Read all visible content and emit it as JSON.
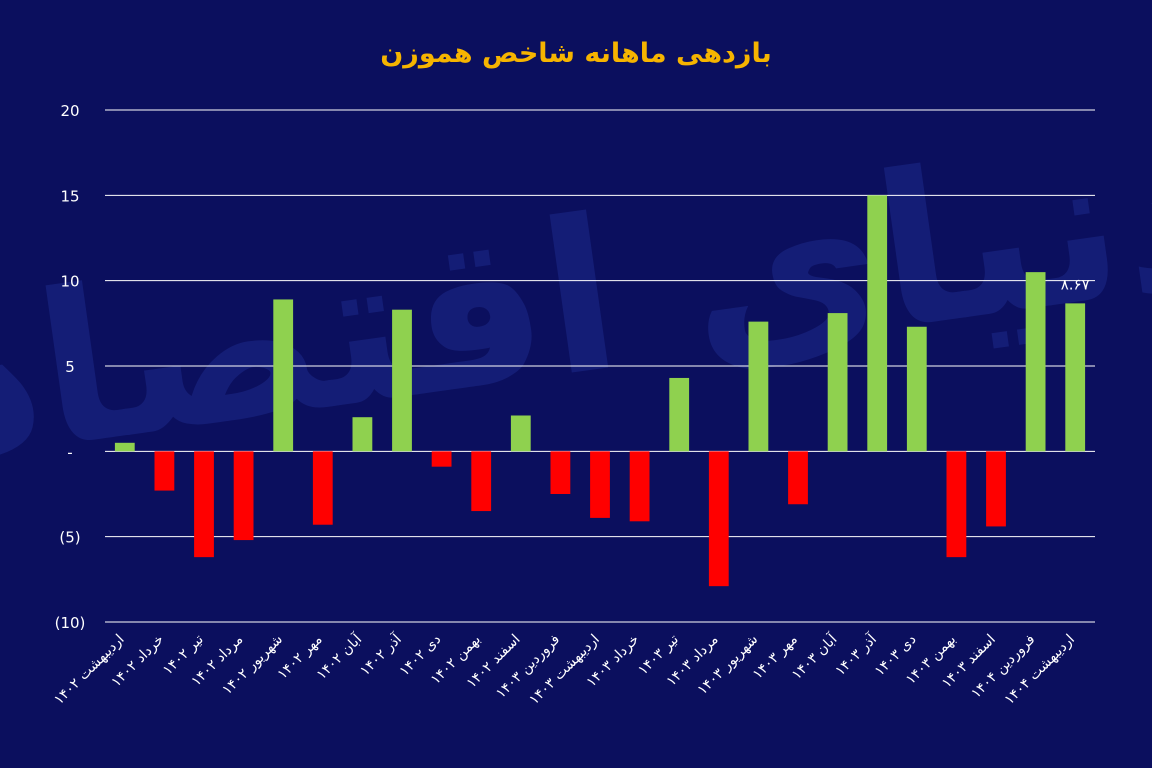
{
  "colors": {
    "background": "#0b0f5e",
    "title": "#f6b400",
    "positive": "#8fd14f",
    "negative": "#ff0000",
    "grid": "#ffffff",
    "text": "#ffffff",
    "watermark": "#1c2a8a"
  },
  "watermark_text": "دنیای اقتصاد",
  "chart_data": {
    "type": "bar",
    "title": "بازدهی ماهانه شاخص هموزن",
    "xlabel": "",
    "ylabel": "",
    "ylim": [
      -10,
      20
    ],
    "grid": true,
    "legend": "none",
    "y_ticks": [
      {
        "value": 20,
        "label": "20"
      },
      {
        "value": 15,
        "label": "15"
      },
      {
        "value": 10,
        "label": "10"
      },
      {
        "value": 5,
        "label": "5"
      },
      {
        "value": 0,
        "label": "-"
      },
      {
        "value": -5,
        "label": "(5)"
      },
      {
        "value": -10,
        "label": "(10)"
      }
    ],
    "categories": [
      "اردیبهشت ۱۴۰۲",
      "خرداد ۱۴۰۲",
      "تیر ۱۴۰۲",
      "مرداد ۱۴۰۲",
      "شهریور ۱۴۰۲",
      "مهر ۱۴۰۲",
      "آبان ۱۴۰۲",
      "آذر ۱۴۰۲",
      "دی ۱۴۰۲",
      "بهمن ۱۴۰۲",
      "اسفند ۱۴۰۲",
      "فروردین ۱۴۰۳",
      "اردیبهشت ۱۴۰۳",
      "خرداد ۱۴۰۳",
      "تیر ۱۴۰۳",
      "مرداد ۱۴۰۳",
      "شهریور ۱۴۰۳",
      "مهر ۱۴۰۳",
      "آبان ۱۴۰۳",
      "آذر ۱۴۰۳",
      "دی ۱۴۰۳",
      "بهمن ۱۴۰۳",
      "اسفند ۱۴۰۳",
      "فروردین ۱۴۰۴",
      "اردیبهشت ۱۴۰۴"
    ],
    "values": [
      0.5,
      -2.3,
      -6.2,
      -5.2,
      8.9,
      -4.3,
      2.0,
      8.3,
      -0.9,
      -3.5,
      2.1,
      -2.5,
      -3.9,
      -4.1,
      4.3,
      -7.9,
      7.6,
      -3.1,
      8.1,
      15.0,
      7.3,
      -6.2,
      -4.4,
      10.5,
      8.67
    ],
    "data_labels": [
      {
        "index": 24,
        "text": "۸.۶۷"
      }
    ]
  }
}
